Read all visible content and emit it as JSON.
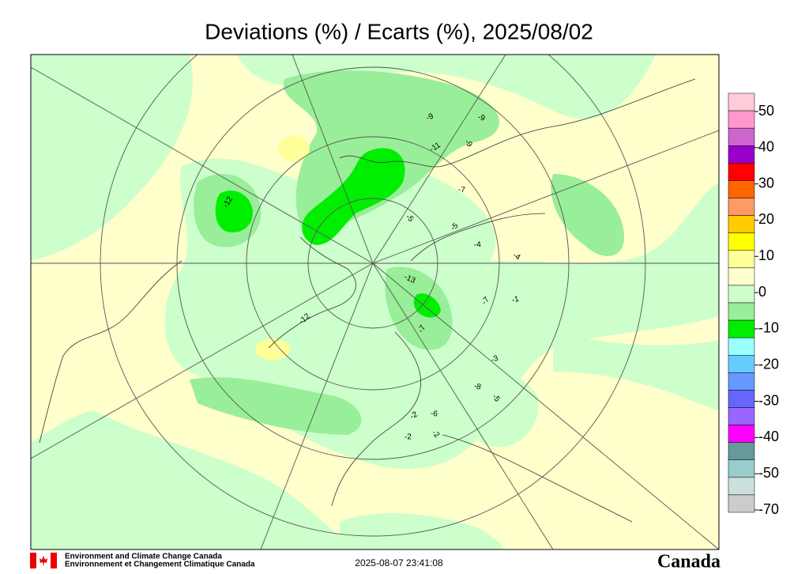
{
  "title": "Deviations (%) / Ecarts (%), 2025/08/02",
  "legend": {
    "labels": [
      "50",
      "40",
      "30",
      "20",
      "10",
      "0",
      "-10",
      "-20",
      "-30",
      "-40",
      "-50",
      "-70"
    ],
    "colors": [
      "#ffccd9",
      "#ff99cc",
      "#cc66cc",
      "#9900cc",
      "#ff0000",
      "#ff6600",
      "#ff9966",
      "#ffcc00",
      "#ffff00",
      "#ffff99",
      "#ffffcc",
      "#ccffcc",
      "#99ee99",
      "#00ee00",
      "#99ffff",
      "#66ccff",
      "#6699ff",
      "#6666ff",
      "#9966ff",
      "#ff00ff",
      "#669999",
      "#99cccc",
      "#cce0dd",
      "#cccccc"
    ]
  },
  "station_labels": [
    "-12",
    "-9",
    "-9",
    "-9",
    "-11",
    "-7",
    "-5",
    "-5",
    "-4",
    "-4",
    "-7",
    "-1",
    "-13",
    "-7",
    "-3",
    "-8",
    "-5",
    "-2",
    "-6",
    "-2",
    "-12",
    "-2"
  ],
  "footer": {
    "agency_en": "Environment and Climate Change Canada",
    "agency_fr": "Environnement et Changement Climatique Canada",
    "timestamp": "2025-08-07 23:41:08",
    "wordmark": "Canada"
  }
}
